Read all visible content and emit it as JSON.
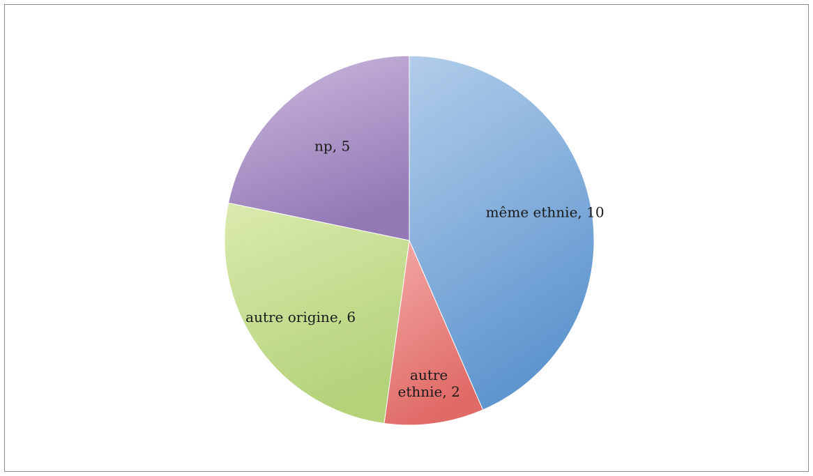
{
  "chart_data": {
    "type": "pie",
    "start_angle_deg": 0,
    "direction": "clockwise",
    "slices": [
      {
        "label_lines": [
          "même ethnie, 10"
        ],
        "value": 10,
        "color_light": "#b2cdea",
        "color_dark": "#5f96cf"
      },
      {
        "label_lines": [
          "autre",
          "ethnie, 2"
        ],
        "value": 2,
        "color_light": "#f3aaa8",
        "color_dark": "#e06a66"
      },
      {
        "label_lines": [
          "autre origine, 6"
        ],
        "value": 6,
        "color_light": "#dbeaae",
        "color_dark": "#b3d27a"
      },
      {
        "label_lines": [
          "np, 5"
        ],
        "value": 5,
        "color_light": "#ccbbdd",
        "color_dark": "#9479b7"
      }
    ]
  }
}
